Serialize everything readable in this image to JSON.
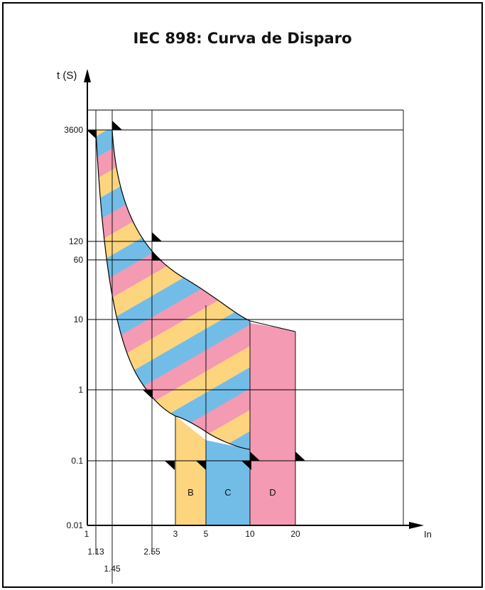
{
  "chart_data": {
    "type": "area",
    "title": "IEC 898: Curva de Disparo",
    "ylabel": "t (S)",
    "xlabel": "In",
    "x_scale": "custom",
    "y_scale": "log",
    "y_ticks": [
      "0.01",
      "0.1",
      "1",
      "10",
      "60",
      "120",
      "3600"
    ],
    "x_ticks_row1": [
      "1",
      "3",
      "5",
      "10",
      "20"
    ],
    "x_ticks_row2": [
      "1.13",
      "2.55"
    ],
    "x_ticks_row3": [
      "1.45"
    ],
    "zones": [
      {
        "name": "B",
        "x_start": 3,
        "x_end": 5,
        "color": "#fdd57f"
      },
      {
        "name": "C",
        "x_start": 5,
        "x_end": 10,
        "color": "#72bde8"
      },
      {
        "name": "D",
        "x_start": 10,
        "x_end": 20,
        "color": "#f49ab3"
      }
    ],
    "stripe_colors": [
      "#72bde8",
      "#f49ab3",
      "#fdd57f"
    ],
    "grid": true
  }
}
